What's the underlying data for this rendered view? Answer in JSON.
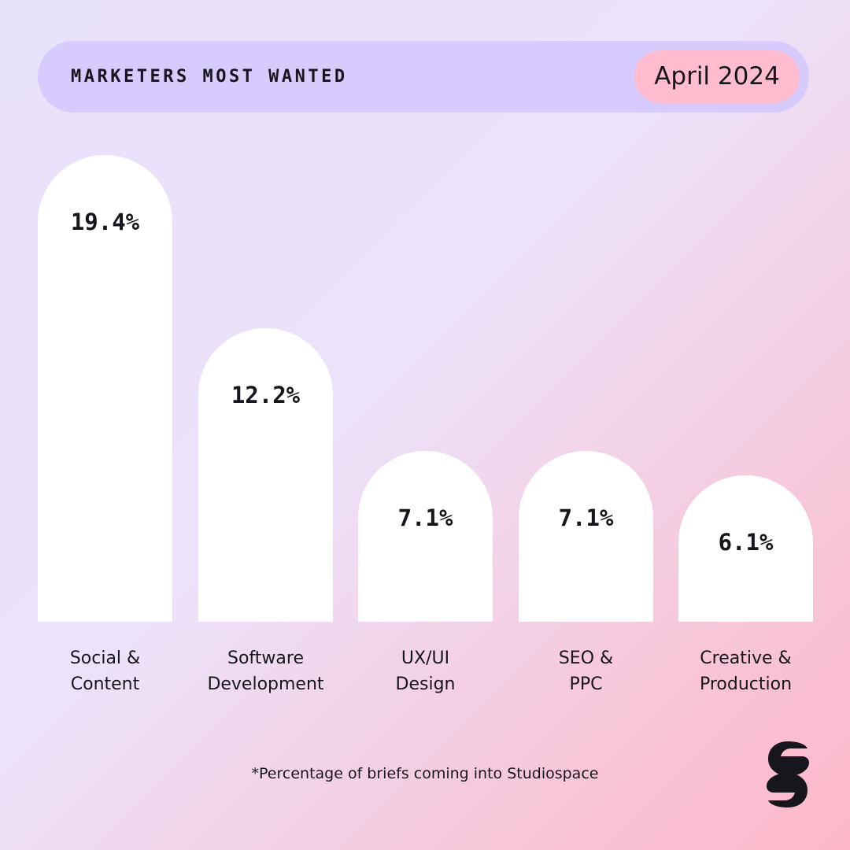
{
  "header": {
    "title": "MARKETERS MOST WANTED",
    "date": "April 2024"
  },
  "chart_data": {
    "type": "bar",
    "categories": [
      [
        "Social &",
        "Content"
      ],
      [
        "Software",
        "Development"
      ],
      [
        "UX/UI",
        "Design"
      ],
      [
        "SEO &",
        "PPC"
      ],
      [
        "Creative &",
        "Production"
      ]
    ],
    "values": [
      19.4,
      12.2,
      7.1,
      7.1,
      6.1
    ],
    "value_labels": [
      "19.4%",
      "12.2%",
      "7.1%",
      "7.1%",
      "6.1%"
    ],
    "ylim": [
      0,
      19.4
    ],
    "grid": false,
    "title": "",
    "xlabel": "",
    "ylabel": ""
  },
  "footnote": "*Percentage of briefs coming into Studiospace",
  "colors": {
    "bar": "#ffffff",
    "header_bg": "#d7cafc",
    "date_pill": "#ffbcce",
    "text": "#17161c"
  },
  "logo": {
    "icon": "studiospace-logo-icon"
  }
}
